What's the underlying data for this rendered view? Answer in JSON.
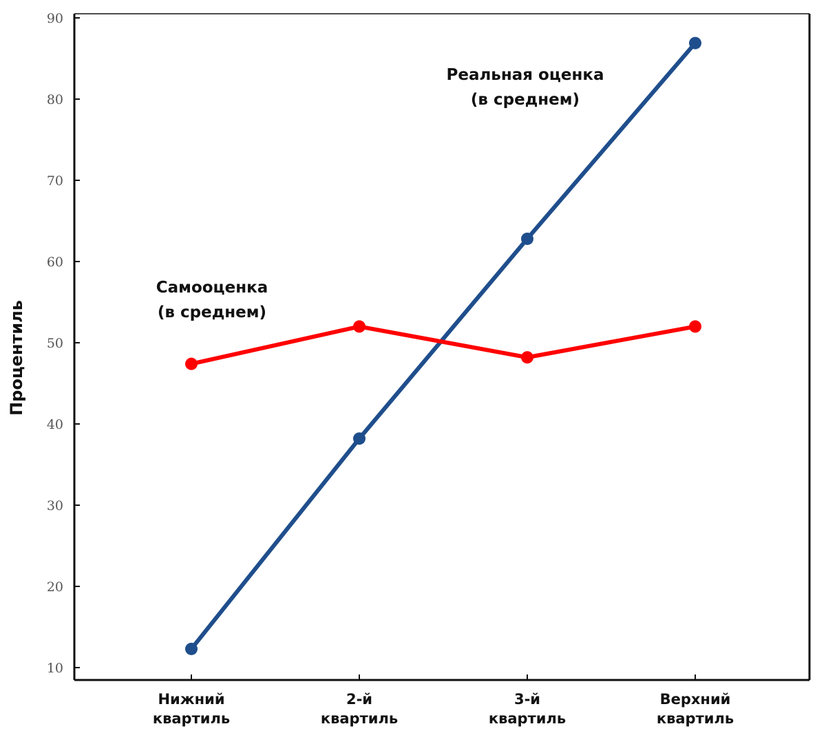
{
  "chart_data": {
    "type": "line",
    "title": "",
    "xlabel": "",
    "ylabel": "Процентиль",
    "ylim": [
      10,
      90
    ],
    "yticks": [
      10,
      20,
      30,
      40,
      50,
      60,
      70,
      80,
      90
    ],
    "grid": false,
    "categories": [
      [
        "Нижний",
        "квартиль"
      ],
      [
        "2-й",
        "квартиль"
      ],
      [
        "3-й",
        "квартиль"
      ],
      [
        "Верхний",
        "квартиль"
      ]
    ],
    "series": [
      {
        "name": "Реальная оценка (в среднем)",
        "label_lines": [
          "Реальная оценка",
          "(в среднем)"
        ],
        "color": "#1f4e8c",
        "values": [
          12.3,
          38.2,
          62.8,
          86.9
        ]
      },
      {
        "name": "Самооценка (в среднем)",
        "label_lines": [
          "Самооценка",
          "(в среднем)"
        ],
        "color": "#ff0000",
        "values": [
          47.4,
          52.0,
          48.2,
          52.0
        ]
      }
    ]
  }
}
